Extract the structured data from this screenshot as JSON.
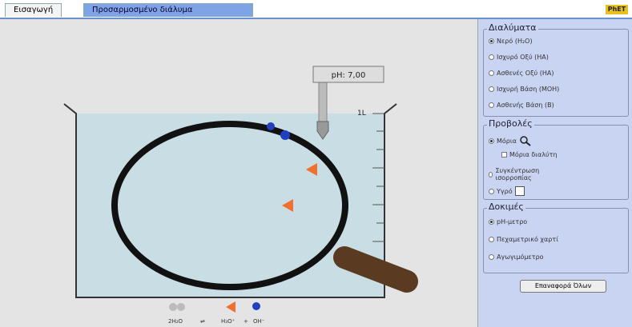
{
  "tabs": [
    "Εισαγωγή",
    "Προσαρμοσμένο διάλυμα"
  ],
  "logo": "PhET",
  "ph_meter": "pH: 7,00",
  "beaker_label": "1L",
  "equation": {
    "water": "2H₂O",
    "arrow": "⇌",
    "hydronium": "H₃O⁺",
    "plus": "+",
    "hydroxide": "OH⁻"
  },
  "solutions": {
    "title": "Διαλύματα",
    "options": [
      "Νερό (H₂O)",
      "Ισχυρό Οξύ (HA)",
      "Ασθενές Οξύ (HA)",
      "Ισχυρή Βάση (MOH)",
      "Ασθενής Βάση (B)"
    ]
  },
  "views": {
    "title": "Προβολές",
    "molecules": "Μόρια",
    "solvent": "Μόρια διαλύτη",
    "equilibrium": "Συγκέντρωση ισορροπίας",
    "liquid": "Υγρό"
  },
  "tests": {
    "title": "Δοκιμές",
    "options": [
      "pH-μετρο",
      "Πεχαμετρικό χαρτί",
      "Αγωγιμόμετρο"
    ]
  },
  "reset": "Επαναφορά Όλων"
}
